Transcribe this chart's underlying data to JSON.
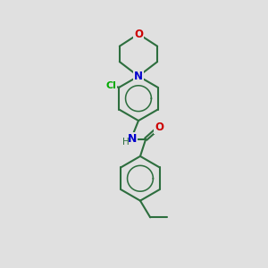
{
  "bg_color": "#e0e0e0",
  "bond_color": "#2d6e3e",
  "bond_lw": 1.5,
  "N_color": "#0000cc",
  "O_color": "#cc0000",
  "Cl_color": "#00aa00",
  "text_fontsize": 8.5,
  "figsize": [
    3.0,
    3.0
  ],
  "dpi": 100,
  "xlim": [
    0,
    10
  ],
  "ylim": [
    0,
    12
  ]
}
